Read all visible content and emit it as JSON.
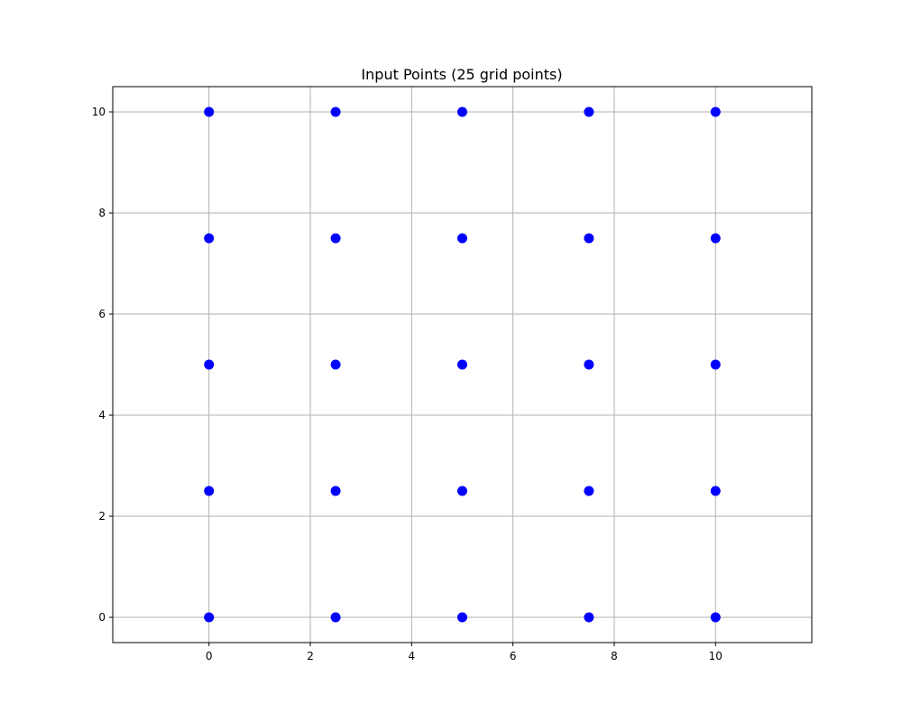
{
  "chart_data": {
    "type": "scatter",
    "title": "Input Points (25 grid points)",
    "xlabel": "",
    "ylabel": "",
    "xlim": [
      -1.9,
      11.9
    ],
    "ylim": [
      -0.5,
      10.5
    ],
    "x_ticks": [
      0,
      2,
      4,
      6,
      8,
      10
    ],
    "y_ticks": [
      0,
      2,
      4,
      6,
      8,
      10
    ],
    "grid": true,
    "legend": "none",
    "series": [
      {
        "color": "#0000ff",
        "points": [
          {
            "x": 0,
            "y": 0
          },
          {
            "x": 2.5,
            "y": 0
          },
          {
            "x": 5,
            "y": 0
          },
          {
            "x": 7.5,
            "y": 0
          },
          {
            "x": 10,
            "y": 0
          },
          {
            "x": 0,
            "y": 2.5
          },
          {
            "x": 2.5,
            "y": 2.5
          },
          {
            "x": 5,
            "y": 2.5
          },
          {
            "x": 7.5,
            "y": 2.5
          },
          {
            "x": 10,
            "y": 2.5
          },
          {
            "x": 0,
            "y": 5
          },
          {
            "x": 2.5,
            "y": 5
          },
          {
            "x": 5,
            "y": 5
          },
          {
            "x": 7.5,
            "y": 5
          },
          {
            "x": 10,
            "y": 5
          },
          {
            "x": 0,
            "y": 7.5
          },
          {
            "x": 2.5,
            "y": 7.5
          },
          {
            "x": 5,
            "y": 7.5
          },
          {
            "x": 7.5,
            "y": 7.5
          },
          {
            "x": 10,
            "y": 7.5
          },
          {
            "x": 0,
            "y": 10
          },
          {
            "x": 2.5,
            "y": 10
          },
          {
            "x": 5,
            "y": 10
          },
          {
            "x": 7.5,
            "y": 10
          },
          {
            "x": 10,
            "y": 10
          }
        ]
      }
    ]
  }
}
